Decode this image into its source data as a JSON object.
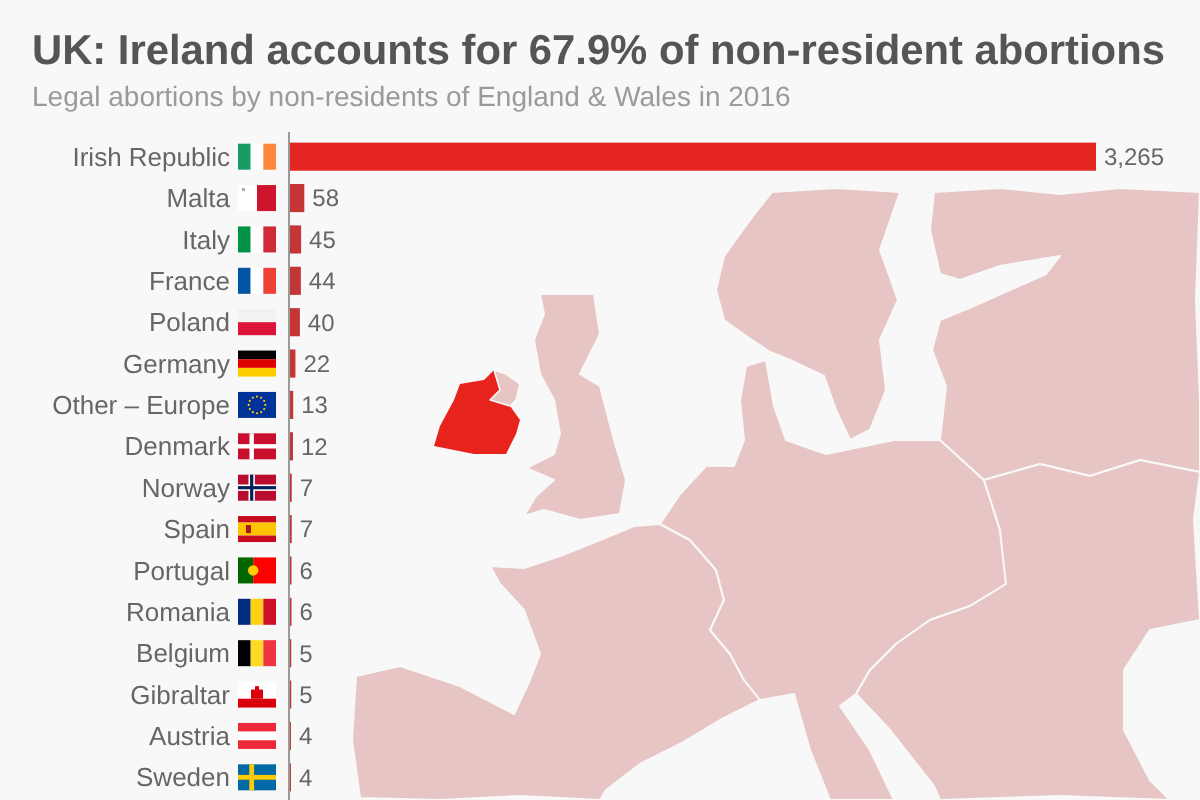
{
  "chart_data": {
    "type": "bar",
    "orientation": "horizontal",
    "title": "UK: Ireland accounts for 67.9% of non-resident abortions",
    "subtitle": "Legal abortions by non-residents of England & Wales in 2016",
    "categories": [
      "Irish Republic",
      "Malta",
      "Italy",
      "France",
      "Poland",
      "Germany",
      "Other – Europe",
      "Denmark",
      "Norway",
      "Spain",
      "Portugal",
      "Romania",
      "Belgium",
      "Gibraltar",
      "Austria",
      "Sweden"
    ],
    "values": [
      3265,
      58,
      45,
      44,
      40,
      22,
      13,
      12,
      7,
      7,
      6,
      6,
      5,
      5,
      4,
      4
    ],
    "value_labels": [
      "3,265",
      "58",
      "45",
      "44",
      "40",
      "22",
      "13",
      "12",
      "7",
      "7",
      "6",
      "6",
      "5",
      "5",
      "4",
      "4"
    ],
    "colors": [
      "#e52521",
      "#c43535",
      "#c43535",
      "#c43535",
      "#c43535",
      "#c43535",
      "#c43535",
      "#c43535",
      "#c43535",
      "#c43535",
      "#c43535",
      "#c43535",
      "#c43535",
      "#c43535",
      "#c43535",
      "#c43535"
    ]
  }
}
